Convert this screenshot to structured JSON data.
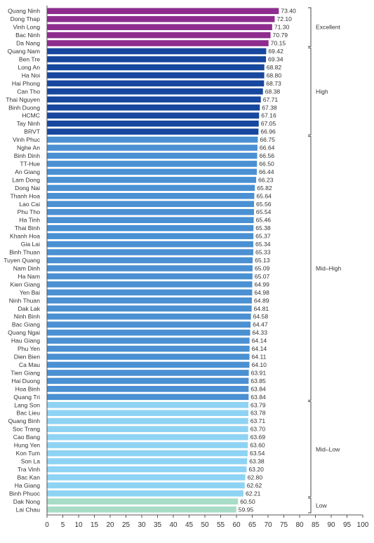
{
  "chart_data": {
    "type": "bar",
    "orientation": "horizontal",
    "title": "",
    "xlabel": "",
    "ylabel": "",
    "xlim": [
      0,
      100
    ],
    "xticks": [
      0,
      5,
      10,
      15,
      20,
      25,
      30,
      35,
      40,
      45,
      50,
      55,
      60,
      65,
      70,
      75,
      80,
      85,
      90,
      95,
      100
    ],
    "grid": false,
    "categories": [
      "Quang Ninh",
      "Dong Thap",
      "Vinh Long",
      "Bac Ninh",
      "Da Nang",
      "Quang Nam",
      "Ben Tre",
      "Long An",
      "Ha Noi",
      "Hai Phong",
      "Can Tho",
      "Thai Nguyen",
      "Binh Duong",
      "HCMC",
      "Tay Ninh",
      "BRVT",
      "Vinh Phuc",
      "Nghe An",
      "Binh Dinh",
      "TT-Hue",
      "An Giang",
      "Lam Dong",
      "Dong Nai",
      "Thanh Hoa",
      "Lao Cai",
      "Phu Tho",
      "Ha Tinh",
      "Thai Binh",
      "Khanh Hoa",
      "Gia Lai",
      "Binh Thuan",
      "Tuyen Quang",
      "Nam Dinh",
      "Ha Nam",
      "Kien Giang",
      "Yen Bai",
      "Ninh Thuan",
      "Dak Lak",
      "Ninh Binh",
      "Bac Giang",
      "Quang Ngai",
      "Hau Giang",
      "Phu Yen",
      "Dien Bien",
      "Ca Mau",
      "Tien Giang",
      "Hai Duong",
      "Hoa Binh",
      "Quang Tri",
      "Lang Son",
      "Bac Lieu",
      "Quang Binh",
      "Soc Trang",
      "Cao Bang",
      "Hung Yen",
      "Kon Tum",
      "Son La",
      "Tra Vinh",
      "Bac Kan",
      "Ha Giang",
      "Binh Phuoc",
      "Dak Nong",
      "Lai Chau"
    ],
    "values": [
      73.4,
      72.1,
      71.3,
      70.79,
      70.15,
      69.42,
      69.34,
      68.82,
      68.8,
      68.73,
      68.38,
      67.71,
      67.38,
      67.16,
      67.05,
      66.96,
      66.75,
      66.64,
      66.56,
      66.5,
      66.44,
      66.23,
      65.82,
      65.64,
      65.56,
      65.54,
      65.46,
      65.38,
      65.37,
      65.34,
      65.33,
      65.13,
      65.09,
      65.07,
      64.99,
      64.98,
      64.89,
      64.81,
      64.58,
      64.47,
      64.33,
      64.14,
      64.14,
      64.11,
      64.1,
      63.91,
      63.85,
      63.84,
      63.84,
      63.79,
      63.78,
      63.71,
      63.7,
      63.69,
      63.6,
      63.54,
      63.38,
      63.2,
      62.8,
      62.62,
      62.21,
      60.5,
      59.95
    ],
    "value_labels": [
      "73.40",
      "72.10",
      "71.30",
      "70.79",
      "70.15",
      "69.42",
      "69.34",
      "68.82",
      "68.80",
      "68.73",
      "68.38",
      "67.71",
      "67.38",
      "67.16",
      "67.05",
      "66.96",
      "66.75",
      "66.64",
      "66.56",
      "66.50",
      "66.44",
      "66.23",
      "65.82",
      "65.64",
      "65.56",
      "65.54",
      "65.46",
      "65.38",
      "65.37",
      "65.34",
      "65.33",
      "65.13",
      "65.09",
      "65.07",
      "64.99",
      "64.98",
      "64.89",
      "64.81",
      "64.58",
      "64.47",
      "64.33",
      "64.14",
      "64.14",
      "64.11",
      "64.10",
      "63.91",
      "63.85",
      "63.84",
      "63.84",
      "63.79",
      "63.78",
      "63.71",
      "63.70",
      "63.69",
      "63.60",
      "63.54",
      "63.38",
      "63.20",
      "62.80",
      "62.62",
      "62.21",
      "60.50",
      "59.95"
    ],
    "groups": [
      {
        "name": "Excellent",
        "start": 0,
        "end": 4,
        "color": "#8e2d8e"
      },
      {
        "name": "High",
        "start": 5,
        "end": 15,
        "color": "#17479e"
      },
      {
        "name": "Mid–High",
        "start": 16,
        "end": 48,
        "color": "#4a90d2"
      },
      {
        "name": "Mid–Low",
        "start": 49,
        "end": 60,
        "color": "#8fd3f4"
      },
      {
        "name": "Low",
        "start": 61,
        "end": 62,
        "color": "#a8dcc6"
      }
    ]
  }
}
